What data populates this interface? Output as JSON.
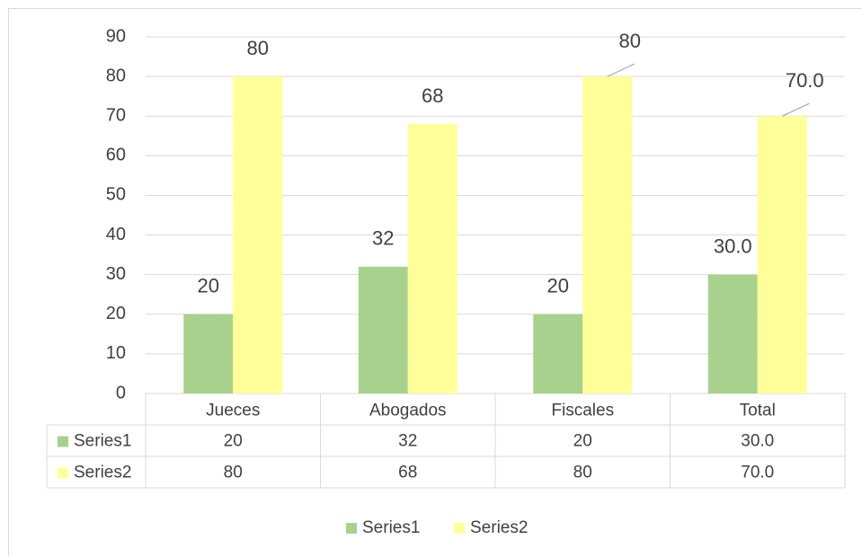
{
  "chart_data": {
    "type": "bar",
    "categories": [
      "Jueces",
      "Abogados",
      "Fiscales",
      "Total"
    ],
    "series": [
      {
        "name": "Series1",
        "values": [
          20,
          32,
          20,
          30.0
        ],
        "labels": [
          "20",
          "32",
          "20",
          "30.0"
        ],
        "color": "#a9d18e"
      },
      {
        "name": "Series2",
        "values": [
          80,
          68,
          80,
          70.0
        ],
        "labels": [
          "80",
          "68",
          "80",
          "70.0"
        ],
        "color": "#ffff99"
      }
    ],
    "y_ticks": [
      "0",
      "10",
      "20",
      "30",
      "40",
      "50",
      "60",
      "70",
      "80",
      "90"
    ],
    "ylim": [
      0,
      90
    ],
    "grid": true,
    "data_table": true,
    "legend": "bottom",
    "title": "",
    "xlabel": "",
    "ylabel": ""
  }
}
